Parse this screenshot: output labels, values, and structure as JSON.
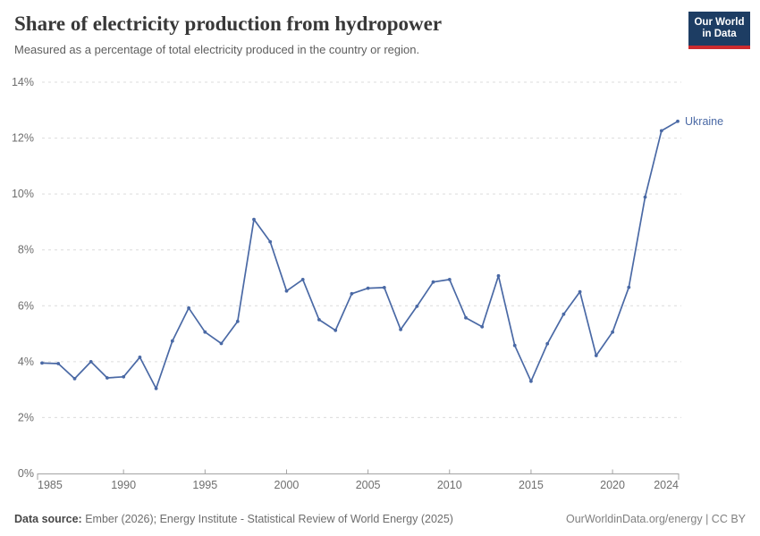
{
  "header": {
    "title": "Share of electricity production from hydropower",
    "subtitle": "Measured as a percentage of total electricity produced in the country or region.",
    "logo": {
      "line1": "Our World",
      "line2": "in Data",
      "bg_color": "#1d3d63",
      "bar_color": "#cc2b2e",
      "text_color": "#ffffff"
    }
  },
  "chart_data": {
    "type": "line",
    "title": "Share of electricity production from hydropower",
    "subtitle": "Measured as a percentage of total electricity produced in the country or region.",
    "xlabel": "",
    "ylabel": "",
    "unit": "%",
    "x": [
      1985,
      1986,
      1987,
      1988,
      1989,
      1990,
      1991,
      1992,
      1993,
      1994,
      1995,
      1996,
      1997,
      1998,
      1999,
      2000,
      2001,
      2002,
      2003,
      2004,
      2005,
      2006,
      2007,
      2008,
      2009,
      2010,
      2011,
      2012,
      2013,
      2014,
      2015,
      2016,
      2017,
      2018,
      2019,
      2020,
      2021,
      2022,
      2023,
      2024
    ],
    "series": [
      {
        "name": "Ukraine",
        "color": "#4a69a5",
        "values": [
          3.95,
          3.93,
          3.39,
          4.0,
          3.42,
          3.46,
          4.16,
          3.04,
          4.74,
          5.92,
          5.06,
          4.65,
          5.44,
          9.09,
          8.29,
          6.53,
          6.94,
          5.5,
          5.12,
          6.43,
          6.63,
          6.65,
          5.15,
          5.98,
          6.85,
          6.94,
          5.57,
          5.25,
          7.07,
          4.58,
          3.3,
          4.64,
          5.7,
          6.5,
          4.22,
          5.06,
          6.66,
          9.89,
          12.26,
          12.6
        ]
      }
    ],
    "ylim": [
      0,
      14
    ],
    "yticks": [
      0,
      2,
      4,
      6,
      8,
      10,
      12,
      14
    ],
    "ytick_labels": [
      "0%",
      "2%",
      "4%",
      "6%",
      "8%",
      "10%",
      "12%",
      "14%"
    ],
    "xticks": [
      1985,
      1990,
      1995,
      2000,
      2005,
      2010,
      2015,
      2020,
      2024
    ],
    "xtick_labels": [
      "1985",
      "1990",
      "1995",
      "2000",
      "2005",
      "2010",
      "2015",
      "2020",
      "2024"
    ],
    "grid": "horizontal-dashed",
    "legend_position": "line-end-label"
  },
  "footer": {
    "source_label": "Data source:",
    "source_text": "Ember (2026); Energy Institute - Statistical Review of World Energy (2025)",
    "license": "OurWorldinData.org/energy | CC BY"
  },
  "colors": {
    "accent": "#4a69a5",
    "grid": "#dcdcdc",
    "axis": "#a3a3a3",
    "tick_text": "#6e6e6e"
  }
}
